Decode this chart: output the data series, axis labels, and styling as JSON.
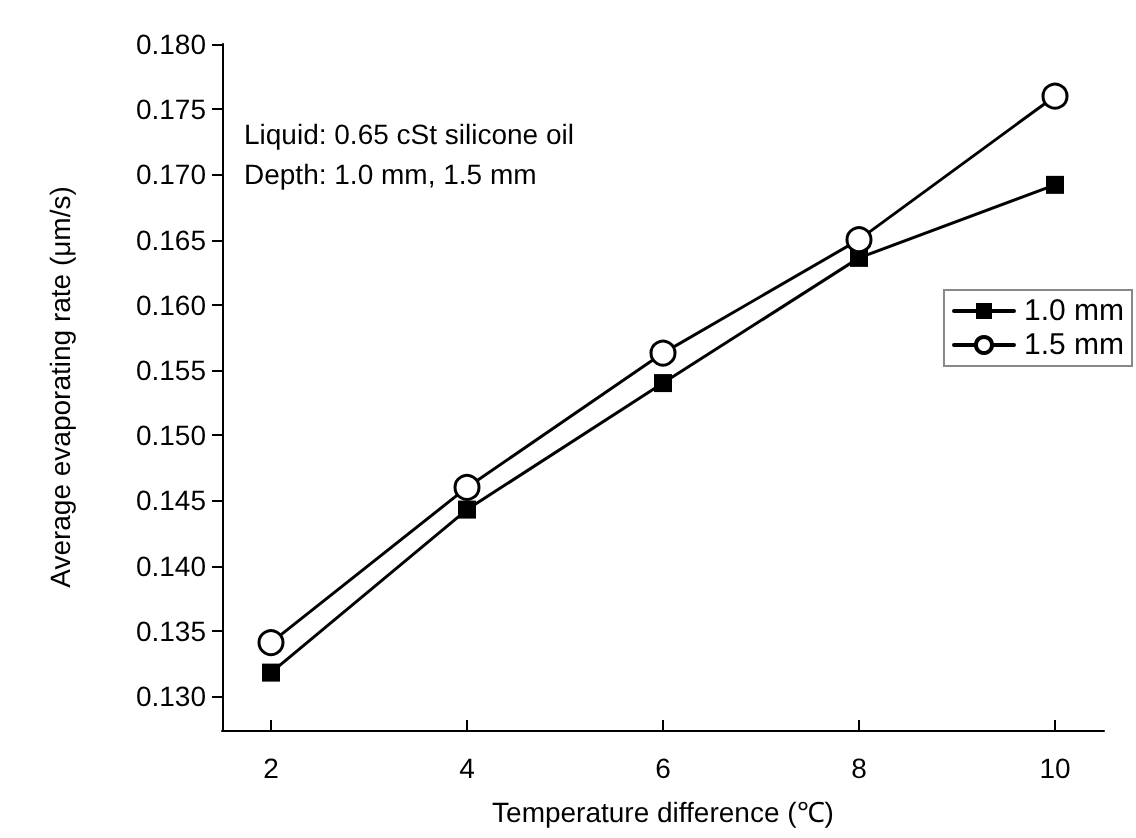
{
  "chart_data": {
    "type": "line",
    "xlabel": "Temperature difference (℃)",
    "ylabel": "Average evaporating rate (μm/s)",
    "annotations": [
      "Liquid: 0.65 cSt silicone oil",
      "Depth: 1.0 mm, 1.5 mm"
    ],
    "x": [
      2,
      4,
      6,
      8,
      10
    ],
    "series": [
      {
        "name": "1.0 mm",
        "color": "#000000",
        "marker": "square",
        "values": [
          0.1318,
          0.1443,
          0.154,
          0.1636,
          0.1692
        ]
      },
      {
        "name": "1.5 mm",
        "color": "#000000",
        "marker": "circle",
        "values": [
          0.1341,
          0.146,
          0.1563,
          0.165,
          0.176
        ]
      }
    ],
    "xlim": [
      1.5,
      10.5
    ],
    "xticks": [
      2,
      4,
      6,
      8,
      10
    ],
    "ylim": [
      0.1274,
      0.18
    ],
    "yticks": [
      {
        "value": 0.13,
        "label": "0.130"
      },
      {
        "value": 0.135,
        "label": "0.135"
      },
      {
        "value": 0.14,
        "label": "0.140"
      },
      {
        "value": 0.145,
        "label": "0.145"
      },
      {
        "value": 0.15,
        "label": "0.150"
      },
      {
        "value": 0.155,
        "label": "0.155"
      },
      {
        "value": 0.16,
        "label": "0.160"
      },
      {
        "value": 0.165,
        "label": "0.165"
      },
      {
        "value": 0.17,
        "label": "0.170"
      },
      {
        "value": 0.175,
        "label": "0.175"
      },
      {
        "value": 0.18,
        "label": "0.180"
      }
    ],
    "grid": false,
    "legend": "right",
    "line_style": "solid"
  }
}
